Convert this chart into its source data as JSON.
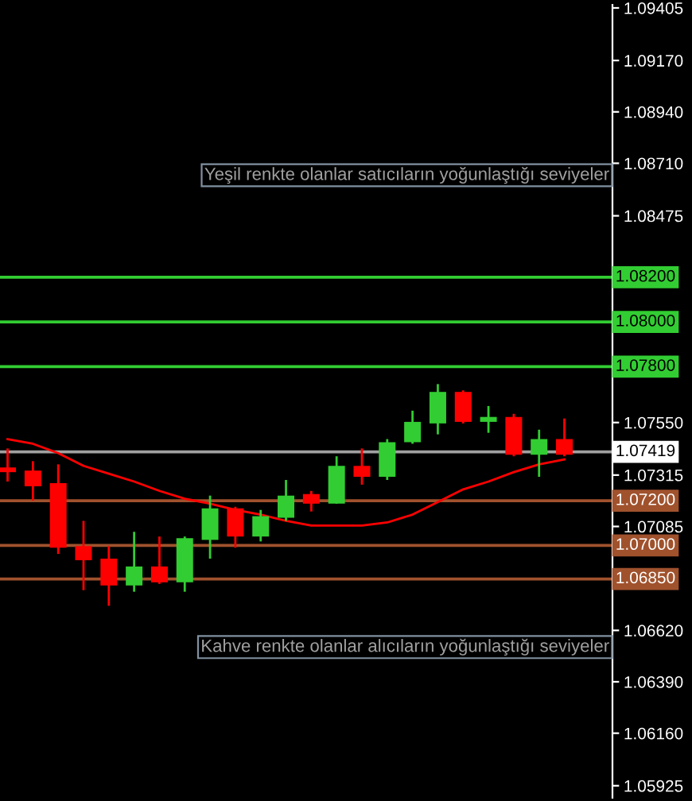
{
  "chart_data": {
    "type": "candlestick",
    "categories": [
      null,
      null,
      null,
      null,
      null,
      null,
      null,
      null,
      null,
      null,
      null,
      null,
      null,
      null,
      null,
      null,
      null,
      null,
      null,
      null,
      null,
      null,
      null
    ],
    "ohlc": [
      [
        1.07349,
        1.07434,
        1.07286,
        1.07328
      ],
      [
        1.07335,
        1.07377,
        1.07201,
        1.07265
      ],
      [
        1.07279,
        1.07363,
        1.06962,
        1.0699
      ],
      [
        1.06997,
        1.0711,
        1.068,
        1.06934
      ],
      [
        1.06941,
        1.06997,
        1.0673,
        1.06821
      ],
      [
        1.06821,
        1.07061,
        1.06793,
        1.06906
      ],
      [
        1.06906,
        1.0704,
        1.06828,
        1.06835
      ],
      [
        1.06835,
        1.0704,
        1.06793,
        1.07033
      ],
      [
        1.07025,
        1.07223,
        1.06941,
        1.07166
      ],
      [
        1.07166,
        1.07173,
        1.0699,
        1.0704
      ],
      [
        1.0704,
        1.07159,
        1.07018,
        1.07131
      ],
      [
        1.07124,
        1.07293,
        1.0711,
        1.07223
      ],
      [
        1.0723,
        1.07244,
        1.07152,
        1.07187
      ],
      [
        1.07187,
        1.07399,
        1.07187,
        1.07356
      ],
      [
        1.07356,
        1.07434,
        1.07272,
        1.07307
      ],
      [
        1.07307,
        1.07476,
        1.07293,
        1.07462
      ],
      [
        1.07462,
        1.07603,
        1.07455,
        1.07553
      ],
      [
        1.07546,
        1.07722,
        1.07497,
        1.07687
      ],
      [
        1.07687,
        1.07694,
        1.07546,
        1.07553
      ],
      [
        1.07553,
        1.07624,
        1.07504,
        1.07575
      ],
      [
        1.07575,
        1.07589,
        1.07399,
        1.07406
      ],
      [
        1.07406,
        1.07518,
        1.07307,
        1.07476
      ],
      [
        1.07476,
        1.07568,
        1.07399,
        1.07406
      ]
    ],
    "colors": [
      "#ff0000",
      "#ff0000",
      "#ff0000",
      "#ff0000",
      "#ff0000",
      "#32cd32",
      "#ff0000",
      "#32cd32",
      "#32cd32",
      "#ff0000",
      "#32cd32",
      "#32cd32",
      "#ff0000",
      "#32cd32",
      "#ff0000",
      "#32cd32",
      "#32cd32",
      "#32cd32",
      "#ff0000",
      "#32cd32",
      "#ff0000",
      "#32cd32",
      "#ff0000"
    ],
    "series": [
      {
        "type": "line",
        "color": "#ff0000",
        "values": [
          1.07476,
          1.07455,
          1.07413,
          1.07356,
          1.07321,
          1.07286,
          1.07244,
          1.07209,
          1.07187,
          1.07159,
          1.07138,
          1.0711,
          1.07089,
          1.07089,
          1.07089,
          1.07103,
          1.07138,
          1.07194,
          1.07251,
          1.07286,
          1.07328,
          1.07363,
          1.07385
        ]
      }
    ],
    "ylim": [
      1.05871,
      1.09419
    ],
    "yticks": [
      {
        "value": 1.09405,
        "label": "1.09405"
      },
      {
        "value": 1.0917,
        "label": "1.09170"
      },
      {
        "value": 1.0894,
        "label": "1.08940"
      },
      {
        "value": 1.0871,
        "label": "1.08710"
      },
      {
        "value": 1.08475,
        "label": "1.08475"
      },
      {
        "value": 1.0755,
        "label": "1.07550"
      },
      {
        "value": 1.07315,
        "label": "1.07315"
      },
      {
        "value": 1.07085,
        "label": "1.07085"
      },
      {
        "value": 1.0662,
        "label": "1.06620"
      },
      {
        "value": 1.0639,
        "label": "1.06390"
      },
      {
        "value": 1.0616,
        "label": "1.06160"
      },
      {
        "value": 1.05925,
        "label": "1.05925"
      }
    ],
    "ref_lines": [
      {
        "axis": "y",
        "value": 1.082,
        "label": "1.08200",
        "color": "#32cd32"
      },
      {
        "axis": "y",
        "value": 1.08,
        "label": "1.08000",
        "color": "#32cd32"
      },
      {
        "axis": "y",
        "value": 1.078,
        "label": "1.07800",
        "color": "#32cd32"
      },
      {
        "axis": "y",
        "value": 1.07419,
        "label": "1.07419",
        "color": "#a0a0a0"
      },
      {
        "axis": "y",
        "value": 1.072,
        "label": "1.07200",
        "color": "#a0522d"
      },
      {
        "axis": "y",
        "value": 1.07,
        "label": "1.07000",
        "color": "#a0522d"
      },
      {
        "axis": "y",
        "value": 1.0685,
        "label": "1.06850",
        "color": "#a0522d"
      }
    ],
    "annotations": [
      "Yeşil renkte olanlar satıcıların yoğunlaştığı seviyeler",
      "Kahve renkte olanlar alıcıların yoğunlaştığı seviyeler"
    ],
    "grid": false,
    "tick_labels": "y"
  }
}
